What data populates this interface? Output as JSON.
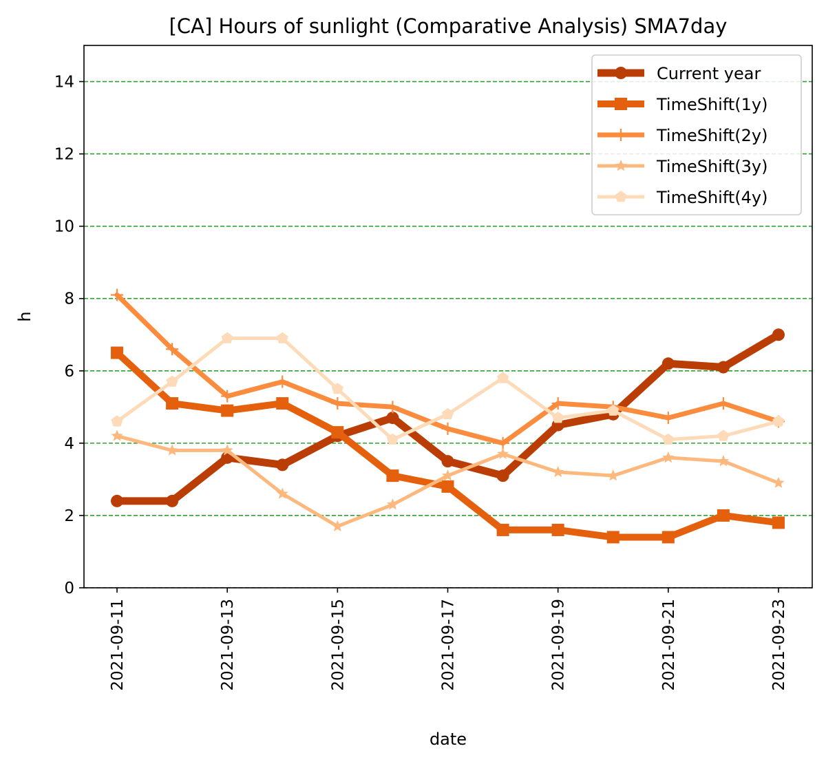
{
  "chart_data": {
    "type": "line",
    "title": "[CA] Hours of sunlight (Comparative Analysis) SMA7day",
    "xlabel": "date",
    "ylabel": "h",
    "ylim": [
      0,
      15
    ],
    "yticks": [
      0,
      2,
      4,
      6,
      8,
      10,
      12,
      14
    ],
    "ytick_labels": [
      "0",
      "2",
      "4",
      "6",
      "8",
      "10",
      "12",
      "14"
    ],
    "x": [
      "2021-09-11",
      "2021-09-12",
      "2021-09-13",
      "2021-09-14",
      "2021-09-15",
      "2021-09-16",
      "2021-09-17",
      "2021-09-18",
      "2021-09-19",
      "2021-09-20",
      "2021-09-21",
      "2021-09-22",
      "2021-09-23"
    ],
    "xtick_labels": [
      "2021-09-11",
      "2021-09-13",
      "2021-09-15",
      "2021-09-17",
      "2021-09-19",
      "2021-09-21",
      "2021-09-23"
    ],
    "grid": "horizontal dashed",
    "grid_color": "#2ca02c",
    "legend_position": "top-right",
    "series": [
      {
        "name": "Current year",
        "color": "#b93d04",
        "marker": "circle",
        "values": [
          2.4,
          2.4,
          3.6,
          3.4,
          4.2,
          4.7,
          3.5,
          3.1,
          4.5,
          4.8,
          6.2,
          6.1,
          7.0
        ]
      },
      {
        "name": "TimeShift(1y)",
        "color": "#e5600d",
        "marker": "square",
        "values": [
          6.5,
          5.1,
          4.9,
          5.1,
          4.3,
          3.1,
          2.8,
          1.6,
          1.6,
          1.4,
          1.4,
          2.0,
          1.8
        ]
      },
      {
        "name": "TimeShift(2y)",
        "color": "#fb8b3d",
        "marker": "plus",
        "values": [
          8.1,
          6.6,
          5.3,
          5.7,
          5.1,
          5.0,
          4.4,
          4.0,
          5.1,
          5.0,
          4.7,
          5.1,
          4.6
        ]
      },
      {
        "name": "TimeShift(3y)",
        "color": "#fdb87d",
        "marker": "star",
        "values": [
          4.2,
          3.8,
          3.8,
          2.6,
          1.7,
          2.3,
          3.1,
          3.7,
          3.2,
          3.1,
          3.6,
          3.5,
          2.9
        ]
      },
      {
        "name": "TimeShift(4y)",
        "color": "#fddbb8",
        "marker": "pentagon",
        "values": [
          4.6,
          5.7,
          6.9,
          6.9,
          5.5,
          4.1,
          4.8,
          5.8,
          4.7,
          4.9,
          4.1,
          4.2,
          4.6
        ]
      }
    ]
  }
}
